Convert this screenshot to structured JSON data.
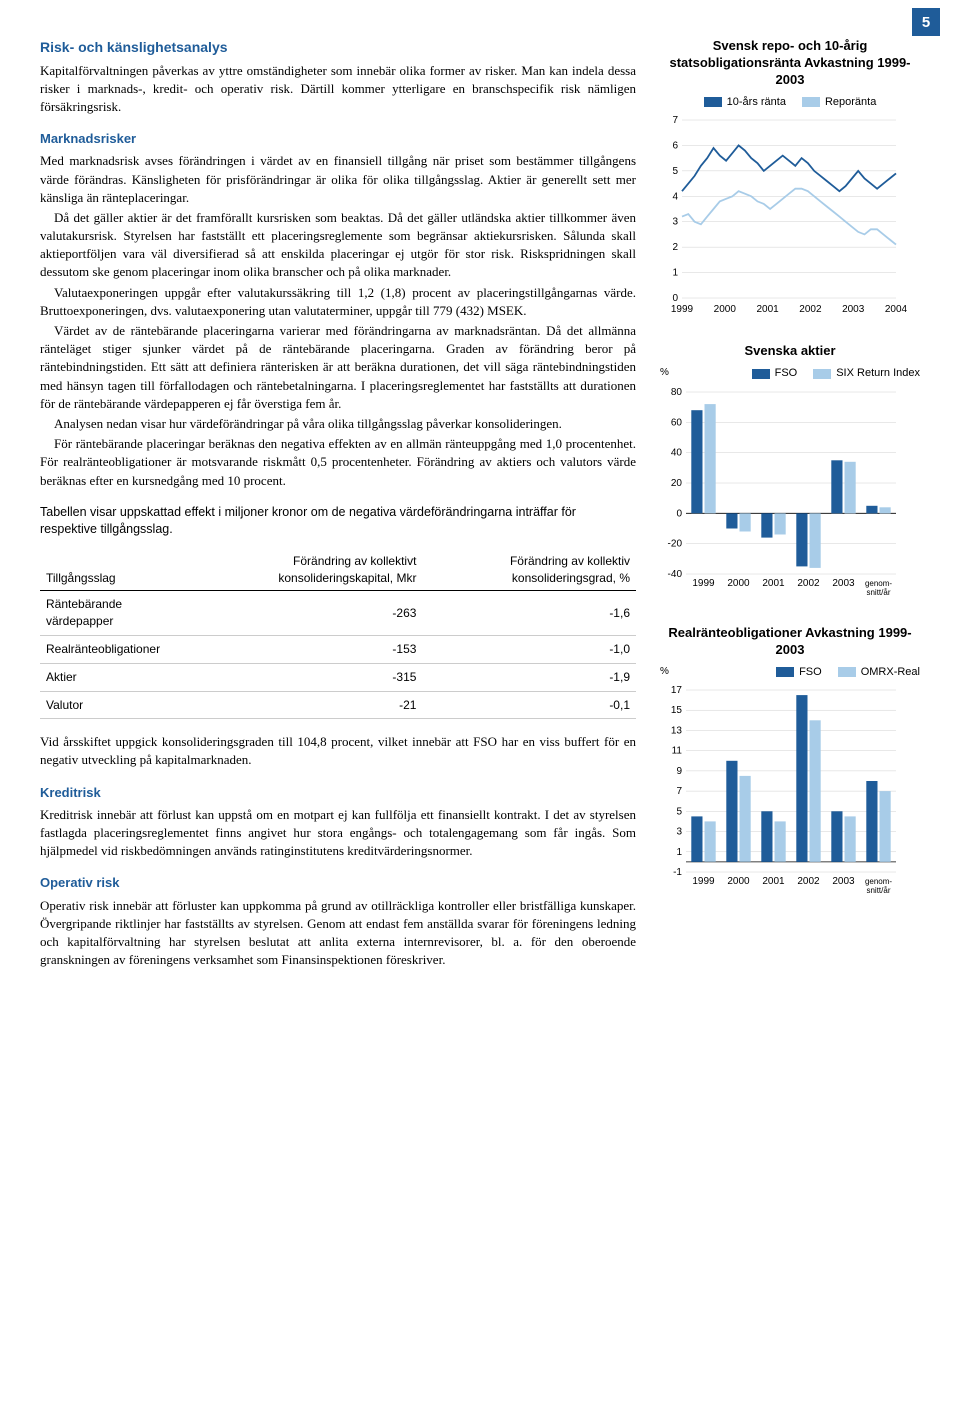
{
  "page_number": "5",
  "main": {
    "h1": "Risk- och känslighetsanalys",
    "p1": "Kapitalförvaltningen påverkas av yttre omständigheter som innebär olika former av risker. Man kan indela dessa risker i marknads-, kredit- och operativ risk. Därtill kommer ytterligare en branschspecifik risk nämligen försäkringsrisk.",
    "h2": "Marknadsrisker",
    "p2": "Med marknadsrisk avses förändringen i värdet av en finansiell tillgång när priset som bestämmer tillgångens värde förändras. Känsligheten för prisförändringar är olika för olika tillgångsslag. Aktier är generellt sett mer känsliga än ränteplaceringar.",
    "p3": "Då det gäller aktier är det framförallt kursrisken som beaktas. Då det gäller utländska aktier tillkommer även valutakursrisk. Styrelsen har fastställt ett placeringsreglemente som begränsar aktiekursrisken. Sålunda skall aktieportföljen vara väl diversifierad så att enskilda placeringar ej utgör för stor risk. Riskspridningen skall dessutom ske genom placeringar inom olika branscher och på olika marknader.",
    "p4": "Valutaexponeringen uppgår efter valutakurssäkring till 1,2 (1,8) procent av placeringstillgångarnas värde. Bruttoexponeringen, dvs. valutaexponering utan valutaterminer, uppgår till 779 (432) MSEK.",
    "p5": "Värdet av de räntebärande placeringarna varierar med förändringarna av marknadsräntan. Då det allmänna ränteläget stiger sjunker värdet på de räntebärande placeringarna. Graden av förändring beror på räntebindningstiden. Ett sätt att definiera ränterisken är att beräkna durationen, det vill säga räntebindningstiden med hänsyn tagen till förfallodagen och räntebetalningarna. I placeringsreglementet har fastställts att durationen för de räntebärande värdepapperen ej får överstiga fem år.",
    "p6": "Analysen nedan visar hur värdeförändringar på våra olika tillgångsslag påverkar konsolideringen.",
    "p7": "För räntebärande placeringar beräknas den negativa effekten av en allmän ränteuppgång med 1,0 procentenhet. För realränteobligationer är motsvarande riskmått 0,5 procentenheter. Förändring av aktiers och valutors värde beräknas efter en kursnedgång med 10 procent.",
    "table_intro": "Tabellen visar uppskattad effekt i miljoner kronor om de negativa värdeförändringarna inträffar för respektive tillgångsslag.",
    "p8": "Vid årsskiftet uppgick konsolideringsgraden till 104,8 procent, vilket innebär att FSO har en viss buffert för en negativ utveckling på kapitalmarknaden.",
    "h3": "Kreditrisk",
    "p9": "Kreditrisk innebär att förlust kan uppstå om en motpart ej kan fullfölja ett finansiellt kontrakt. I det av styrelsen fastlagda placeringsreglementet finns angivet hur stora engångs- och totalengagemang som får ingås. Som hjälpmedel vid riskbedömningen används ratinginstitutens kreditvärderingsnormer.",
    "h4": "Operativ risk",
    "p10": "Operativ risk innebär att förluster kan uppkomma på grund av otillräckliga kontroller eller bristfälliga kunskaper. Övergripande riktlinjer har fastställts av styrelsen. Genom att endast fem anställda svarar för föreningens ledning och kapitalförvaltning har styrelsen beslutat att anlita externa internrevisorer, bl. a. för den oberoende granskningen av föreningens verksamhet som Finansinspektionen föreskriver."
  },
  "table": {
    "col1": "Tillgångsslag",
    "col2": "Förändring av kollektivt konsolideringskapital, Mkr",
    "col3": "Förändring av kollektiv konsolideringsgrad, %",
    "rows": [
      {
        "name": "Räntebärande värdepapper",
        "val1": "-263",
        "val2": "-1,6"
      },
      {
        "name": "Realränteobligationer",
        "val1": "-153",
        "val2": "-1,0"
      },
      {
        "name": "Aktier",
        "val1": "-315",
        "val2": "-1,9"
      },
      {
        "name": "Valutor",
        "val1": "-21",
        "val2": "-0,1"
      }
    ]
  },
  "chart1": {
    "type": "line",
    "title": "Svensk repo- och 10-årig statsobligationsränta Avkastning 1999-2003",
    "legend1": "10-års ränta",
    "legend2": "Reporänta",
    "color1": "#1f5c99",
    "color2": "#a8cce8",
    "y_unit": "",
    "ylim": [
      0,
      7
    ],
    "yticks": [
      0,
      1,
      2,
      3,
      4,
      5,
      6,
      7
    ],
    "x_labels": [
      "1999",
      "2000",
      "2001",
      "2002",
      "2003",
      "2004"
    ],
    "grid_color": "#d0d0d0",
    "series1": [
      4.2,
      4.5,
      4.8,
      5.2,
      5.5,
      5.9,
      5.6,
      5.4,
      5.7,
      6.0,
      5.8,
      5.5,
      5.3,
      5.0,
      5.2,
      5.4,
      5.6,
      5.4,
      5.2,
      5.5,
      5.3,
      5.0,
      4.8,
      4.6,
      4.4,
      4.2,
      4.4,
      4.7,
      5.0,
      4.7,
      4.5,
      4.3,
      4.5,
      4.7,
      4.9
    ],
    "series2": [
      3.2,
      3.3,
      3.0,
      2.9,
      3.2,
      3.5,
      3.8,
      3.9,
      4.0,
      4.2,
      4.1,
      4.0,
      3.8,
      3.7,
      3.5,
      3.7,
      3.9,
      4.1,
      4.3,
      4.3,
      4.2,
      4.0,
      3.8,
      3.6,
      3.4,
      3.2,
      3.0,
      2.8,
      2.6,
      2.5,
      2.7,
      2.7,
      2.5,
      2.3,
      2.1
    ]
  },
  "chart2": {
    "type": "bar",
    "title": "Svenska aktier",
    "legend1": "FSO",
    "legend2": "SIX Return Index",
    "color1": "#1f5c99",
    "color2": "#a8cce8",
    "y_unit": "%",
    "ylim": [
      -40,
      80
    ],
    "yticks": [
      -40,
      -20,
      0,
      20,
      40,
      60,
      80
    ],
    "x_labels": [
      "1999",
      "2000",
      "2001",
      "2002",
      "2003"
    ],
    "x_suffix": "genom-\nsnitt/år",
    "data": [
      {
        "fso": 68,
        "idx": 72
      },
      {
        "fso": -10,
        "idx": -12
      },
      {
        "fso": -16,
        "idx": -14
      },
      {
        "fso": -35,
        "idx": -36
      },
      {
        "fso": 35,
        "idx": 34
      },
      {
        "fso": 5,
        "idx": 4
      }
    ]
  },
  "chart3": {
    "type": "bar",
    "title": "Realränteobligationer Avkastning 1999-2003",
    "legend1": "FSO",
    "legend2": "OMRX-Real",
    "color1": "#1f5c99",
    "color2": "#a8cce8",
    "y_unit": "%",
    "ylim": [
      -1,
      17
    ],
    "yticks": [
      -1,
      1,
      3,
      5,
      7,
      9,
      11,
      13,
      15,
      17
    ],
    "x_labels": [
      "1999",
      "2000",
      "2001",
      "2002",
      "2003"
    ],
    "x_suffix": "genom-\nsnitt/år",
    "data": [
      {
        "fso": 4.5,
        "idx": 4.0
      },
      {
        "fso": 10.0,
        "idx": 8.5
      },
      {
        "fso": 5.0,
        "idx": 4.0
      },
      {
        "fso": 16.5,
        "idx": 14.0
      },
      {
        "fso": 5.0,
        "idx": 4.5
      },
      {
        "fso": 8.0,
        "idx": 7.0
      }
    ]
  },
  "colors": {
    "heading": "#1f5c99",
    "grid": "#d0d0d0"
  }
}
